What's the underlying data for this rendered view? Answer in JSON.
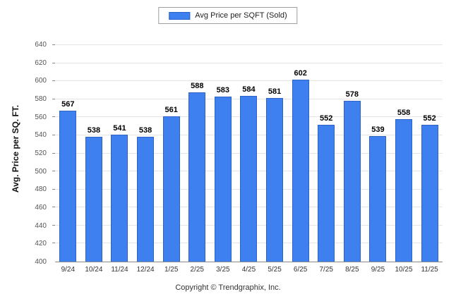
{
  "legend": {
    "label": "Avg Price per SQFT (Sold)"
  },
  "footer": "Copyright © Trendgraphix, Inc.",
  "chart_data": {
    "type": "bar",
    "title": "Avg Price per SQFT (Sold)",
    "categories": [
      "9/24",
      "10/24",
      "11/24",
      "12/24",
      "1/25",
      "2/25",
      "3/25",
      "4/25",
      "5/25",
      "6/25",
      "7/25",
      "8/25",
      "9/25",
      "10/25",
      "11/25"
    ],
    "values": [
      567,
      538,
      541,
      538,
      561,
      588,
      583,
      584,
      581,
      602,
      552,
      578,
      539,
      558,
      552
    ],
    "xlabel": "",
    "ylabel": "Avg. Price per SQ. FT.",
    "ylim": [
      400,
      640
    ],
    "ytick_step": 20,
    "grid": true,
    "legend_position": "top",
    "bar_color": "#3f80f0",
    "bar_border_color": "#2d63c8"
  }
}
